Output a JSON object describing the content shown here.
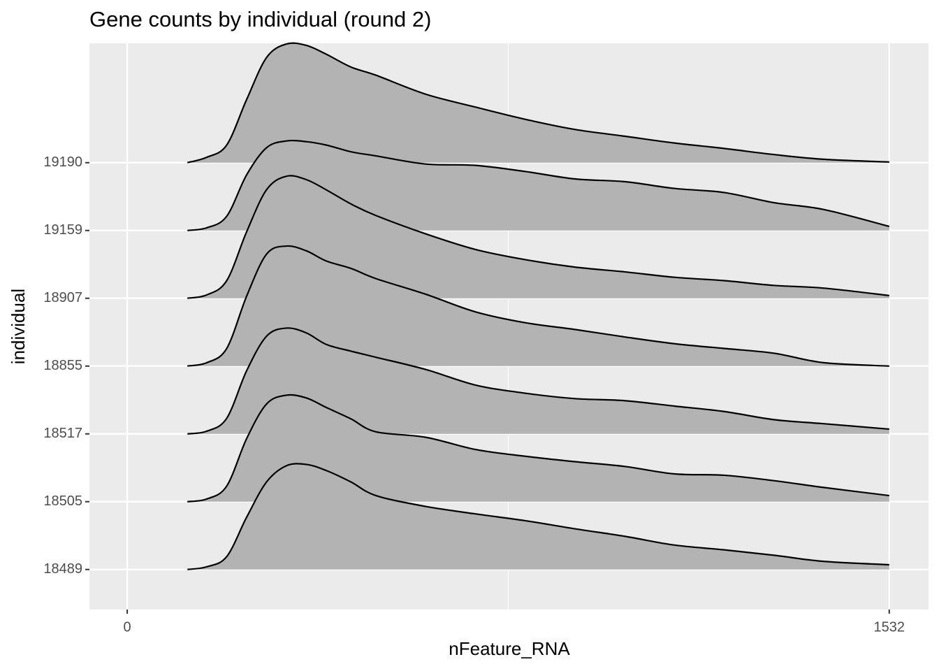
{
  "chart_data": {
    "type": "ridgeline",
    "title": "Gene counts by individual (round 2)",
    "x_label": "nFeature_RNA",
    "y_label": "individual",
    "x": [
      121,
      160,
      200,
      240,
      280,
      320,
      360,
      400,
      450,
      500,
      600,
      700,
      800,
      900,
      1000,
      1100,
      1200,
      1300,
      1400,
      1532
    ],
    "xlim": [
      -76,
      1611
    ],
    "xticks": [
      0,
      1532
    ],
    "ylim": [
      -0.59,
      7.76
    ],
    "fill": "#b3b3b3",
    "grid": true,
    "series": [
      {
        "name": "18489",
        "values": [
          0,
          0.04,
          0.19,
          0.77,
          1.29,
          1.53,
          1.55,
          1.46,
          1.29,
          1.09,
          0.93,
          0.82,
          0.72,
          0.6,
          0.49,
          0.36,
          0.29,
          0.21,
          0.12,
          0.07
        ]
      },
      {
        "name": "18505",
        "values": [
          0,
          0.04,
          0.23,
          0.93,
          1.44,
          1.57,
          1.53,
          1.39,
          1.22,
          1.03,
          0.95,
          0.77,
          0.67,
          0.59,
          0.52,
          0.41,
          0.39,
          0.31,
          0.21,
          0.09
        ]
      },
      {
        "name": "18517",
        "values": [
          0,
          0.04,
          0.23,
          0.93,
          1.44,
          1.56,
          1.49,
          1.32,
          1.22,
          1.13,
          0.95,
          0.72,
          0.6,
          0.52,
          0.49,
          0.41,
          0.33,
          0.21,
          0.15,
          0.07
        ]
      },
      {
        "name": "18855",
        "values": [
          0,
          0.05,
          0.26,
          1.03,
          1.65,
          1.77,
          1.7,
          1.55,
          1.44,
          1.29,
          1.06,
          0.8,
          0.64,
          0.54,
          0.43,
          0.33,
          0.26,
          0.19,
          0.05,
          0
        ]
      },
      {
        "name": "18907",
        "values": [
          0,
          0.05,
          0.26,
          0.98,
          1.6,
          1.8,
          1.75,
          1.6,
          1.39,
          1.22,
          0.95,
          0.72,
          0.57,
          0.46,
          0.39,
          0.31,
          0.26,
          0.19,
          0.15,
          0.04
        ]
      },
      {
        "name": "19159",
        "values": [
          0,
          0.04,
          0.21,
          0.82,
          1.22,
          1.32,
          1.31,
          1.26,
          1.16,
          1.1,
          0.98,
          0.96,
          0.87,
          0.76,
          0.72,
          0.62,
          0.56,
          0.41,
          0.31,
          0.06
        ]
      },
      {
        "name": "19190",
        "values": [
          0,
          0.08,
          0.26,
          0.93,
          1.55,
          1.75,
          1.73,
          1.6,
          1.41,
          1.29,
          1.01,
          0.82,
          0.64,
          0.49,
          0.39,
          0.29,
          0.21,
          0.12,
          0.05,
          0.01
        ]
      }
    ]
  }
}
